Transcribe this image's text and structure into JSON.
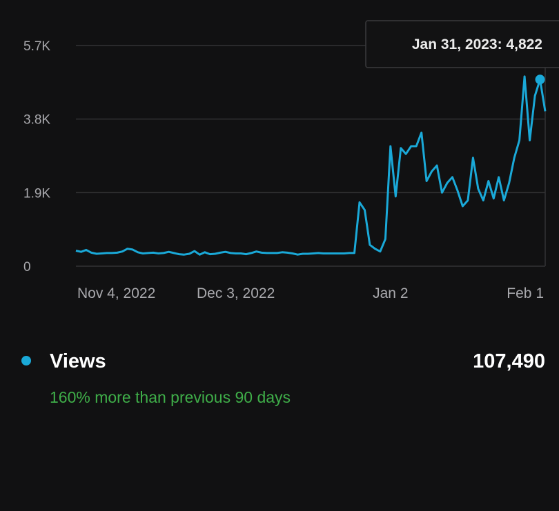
{
  "colors": {
    "line": "#1aa9d8",
    "grid": "#333335",
    "positive": "#3fae49",
    "background": "#111112"
  },
  "chart_data": {
    "type": "line",
    "title": "",
    "xlabel": "",
    "ylabel": "",
    "start_date": "2022-11-02",
    "ylim": [
      0,
      5700
    ],
    "y_ticks": [
      {
        "value": 0,
        "label": "0"
      },
      {
        "value": 1900,
        "label": "1.9K"
      },
      {
        "value": 3800,
        "label": "3.8K"
      },
      {
        "value": 5700,
        "label": "5.7K"
      }
    ],
    "x_ticks": [
      {
        "day": 2,
        "label": "Nov 4, 2022"
      },
      {
        "day": 31,
        "label": "Dec 3, 2022"
      },
      {
        "day": 61,
        "label": "Jan 2"
      },
      {
        "day": 91,
        "label": "Feb 1"
      }
    ],
    "grid": true,
    "series": [
      {
        "name": "Views",
        "values": [
          400,
          370,
          420,
          350,
          320,
          330,
          340,
          340,
          350,
          380,
          450,
          430,
          360,
          330,
          340,
          350,
          330,
          340,
          370,
          340,
          310,
          300,
          320,
          390,
          300,
          360,
          310,
          320,
          350,
          370,
          340,
          330,
          330,
          310,
          340,
          380,
          350,
          340,
          340,
          340,
          360,
          350,
          330,
          300,
          320,
          320,
          330,
          340,
          330,
          330,
          330,
          330,
          330,
          340,
          340,
          1650,
          1450,
          550,
          450,
          380,
          700,
          3100,
          1800,
          3050,
          2900,
          3100,
          3100,
          3450,
          2200,
          2450,
          2600,
          1900,
          2150,
          2300,
          1950,
          1550,
          1700,
          2800,
          2000,
          1700,
          2200,
          1750,
          2300,
          1700,
          2150,
          2800,
          3250,
          4900,
          3250,
          4400,
          4822,
          4000
        ]
      }
    ],
    "highlight": {
      "day": 90,
      "value": 4822,
      "label": "Jan 31, 2023: 4,822"
    }
  },
  "legend": {
    "label": "Views",
    "total": "107,490",
    "comparison": "160% more than previous 90 days"
  }
}
